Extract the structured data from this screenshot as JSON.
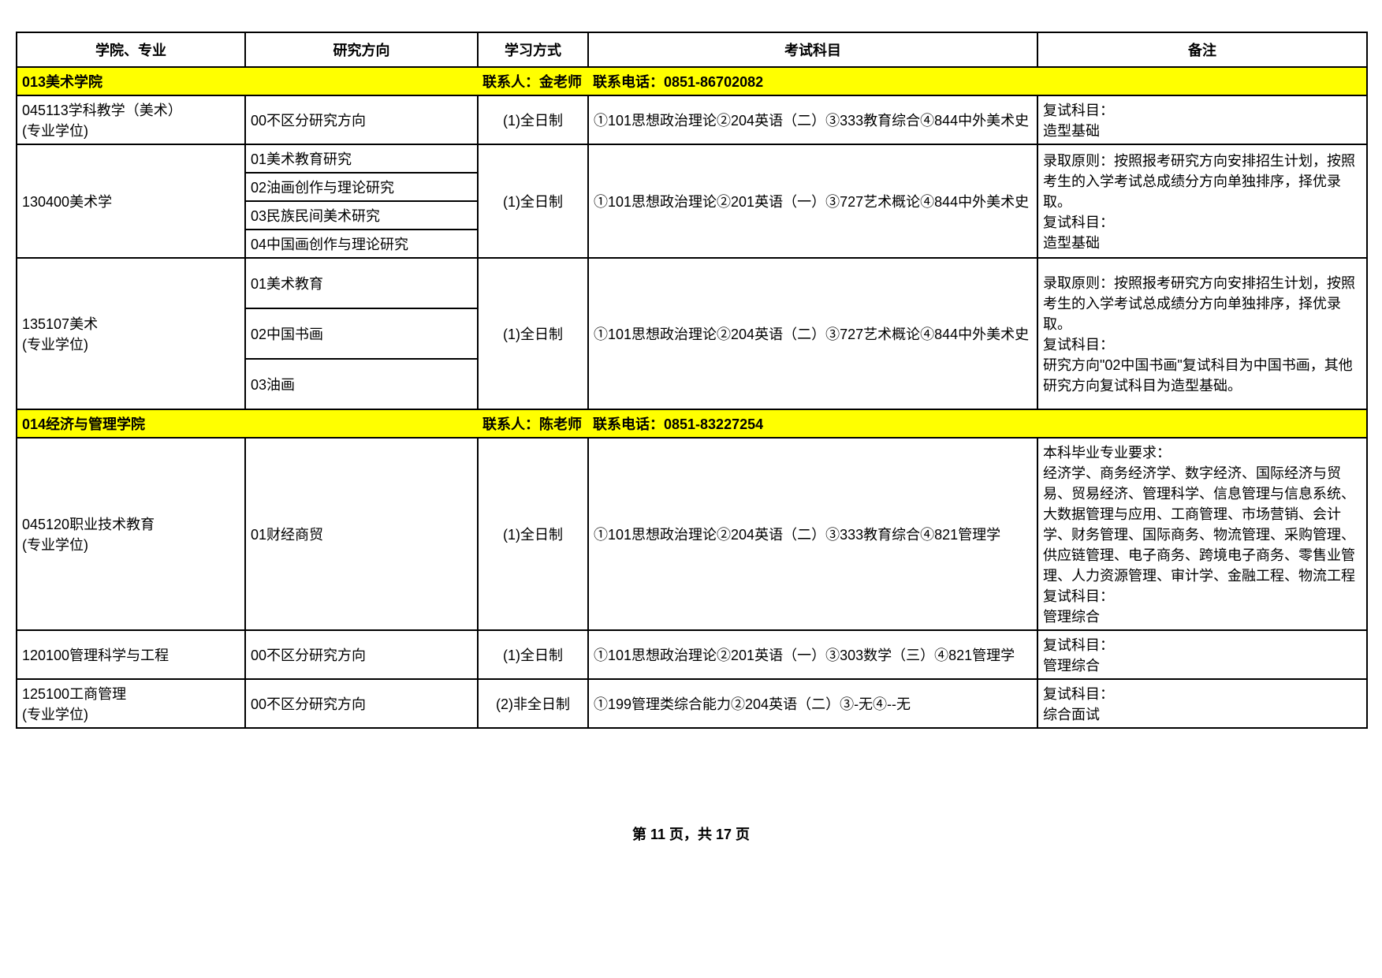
{
  "headers": {
    "school": "学院、专业",
    "direction": "研究方向",
    "study": "学习方式",
    "exam": "考试科目",
    "note": "备注"
  },
  "section1": {
    "code": "013美术学院",
    "contact": "联系人：金老师",
    "phone": "联系电话：0851-86702082"
  },
  "row1": {
    "school": "045113学科教学（美术）\n(专业学位)",
    "direction": "00不区分研究方向",
    "study": "(1)全日制",
    "exam": "①101思想政治理论②204英语（二）③333教育综合④844中外美术史",
    "note": "复试科目：\n造型基础"
  },
  "row2": {
    "school": "130400美术学",
    "direction1": "01美术教育研究",
    "direction2": "02油画创作与理论研究",
    "direction3": "03民族民间美术研究",
    "direction4": "04中国画创作与理论研究",
    "study": "(1)全日制",
    "exam": "①101思想政治理论②201英语（一）③727艺术概论④844中外美术史",
    "note": "录取原则：按照报考研究方向安排招生计划，按照考生的入学考试总成绩分方向单独排序，择优录取。\n复试科目：\n造型基础"
  },
  "row3": {
    "school": "135107美术\n(专业学位)",
    "direction1": "01美术教育",
    "direction2": "02中国书画",
    "direction3": "03油画",
    "study": "(1)全日制",
    "exam": "①101思想政治理论②204英语（二）③727艺术概论④844中外美术史",
    "note": "录取原则：按照报考研究方向安排招生计划，按照考生的入学考试总成绩分方向单独排序，择优录取。\n复试科目：\n研究方向\"02中国书画\"复试科目为中国书画，其他研究方向复试科目为造型基础。"
  },
  "section2": {
    "code": "014经济与管理学院",
    "contact": "联系人：陈老师",
    "phone": "联系电话：0851-83227254"
  },
  "row4": {
    "school": "045120职业技术教育\n(专业学位)",
    "direction": "01财经商贸",
    "study": "(1)全日制",
    "exam": "①101思想政治理论②204英语（二）③333教育综合④821管理学",
    "note": "本科毕业专业要求：\n经济学、商务经济学、数字经济、国际经济与贸易、贸易经济、管理科学、信息管理与信息系统、大数据管理与应用、工商管理、市场营销、会计学、财务管理、国际商务、物流管理、采购管理、供应链管理、电子商务、跨境电子商务、零售业管理、人力资源管理、审计学、金融工程、物流工程\n复试科目：\n管理综合"
  },
  "row5": {
    "school": "120100管理科学与工程",
    "direction": "00不区分研究方向",
    "study": "(1)全日制",
    "exam": "①101思想政治理论②201英语（一）③303数学（三）④821管理学",
    "note": "复试科目：\n管理综合"
  },
  "row6": {
    "school": "125100工商管理\n(专业学位)",
    "direction": "00不区分研究方向",
    "study": "(2)非全日制",
    "exam": "①199管理类综合能力②204英语（二）③-无④--无",
    "note": "复试科目：\n综合面试"
  },
  "footer": {
    "page": "第 11 页，共 17 页"
  }
}
